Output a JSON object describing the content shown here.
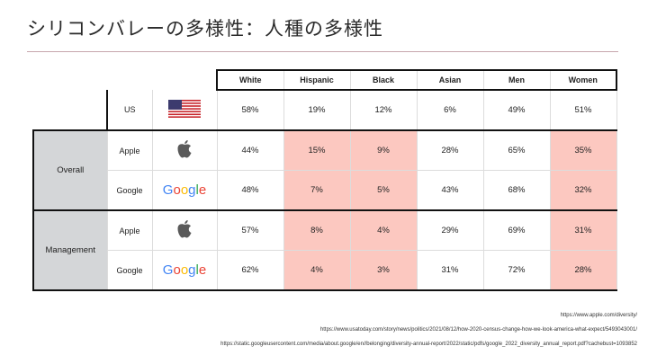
{
  "title": "シリコンバレーの多様性：人種の多様性",
  "columns": [
    "White",
    "Hispanic",
    "Black",
    "Asian",
    "Men",
    "Women"
  ],
  "us": {
    "label": "US",
    "values": [
      "58%",
      "19%",
      "12%",
      "6%",
      "49%",
      "51%"
    ]
  },
  "groups": [
    {
      "label": "Overall",
      "rows": [
        {
          "label": "Apple",
          "logo": "apple-logo",
          "values": [
            "44%",
            "15%",
            "9%",
            "28%",
            "65%",
            "35%"
          ]
        },
        {
          "label": "Google",
          "logo": "google-logo",
          "values": [
            "48%",
            "7%",
            "5%",
            "43%",
            "68%",
            "32%"
          ]
        }
      ]
    },
    {
      "label": "Management",
      "rows": [
        {
          "label": "Apple",
          "logo": "apple-logo",
          "values": [
            "57%",
            "8%",
            "4%",
            "29%",
            "69%",
            "31%"
          ]
        },
        {
          "label": "Google",
          "logo": "google-logo",
          "values": [
            "62%",
            "4%",
            "3%",
            "31%",
            "72%",
            "28%"
          ]
        }
      ]
    }
  ],
  "highlight_color": "#fcc8c0",
  "google_logo_text": "Google",
  "sources": [
    "https://www.apple.com/diversity/",
    "https://www.usatoday.com/story/news/politics/2021/08/12/how-2020-census-change-how-we-look-america-what-expect/5493043001/",
    "https://static.googleusercontent.com/media/about.google/en//belonging/diversity-annual-report/2022/static/pdfs/google_2022_diversity_annual_report.pdf?cachebust=1093852"
  ]
}
